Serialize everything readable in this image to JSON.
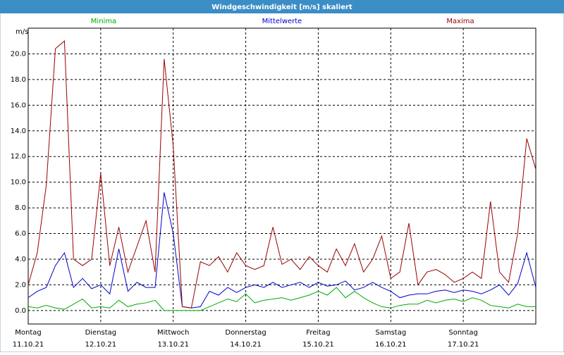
{
  "chart_data": {
    "type": "line",
    "title": "Windgeschwindigkeit [m/s] skaliert",
    "y_unit": "m/s",
    "x": [
      0,
      0.125,
      0.25,
      0.375,
      0.5,
      0.625,
      0.75,
      0.875,
      1,
      1.125,
      1.25,
      1.375,
      1.5,
      1.625,
      1.75,
      1.875,
      2,
      2.125,
      2.25,
      2.375,
      2.5,
      2.625,
      2.75,
      2.875,
      3,
      3.125,
      3.25,
      3.375,
      3.5,
      3.625,
      3.75,
      3.875,
      4,
      4.125,
      4.25,
      4.375,
      4.5,
      4.625,
      4.75,
      4.875,
      5,
      5.125,
      5.25,
      5.375,
      5.5,
      5.625,
      5.75,
      5.875,
      6,
      6.125,
      6.25,
      6.375,
      6.5,
      6.625,
      6.75,
      6.875,
      7
    ],
    "series": [
      {
        "name": "Minima",
        "color": "#00aa00",
        "values": [
          0.3,
          0.2,
          0.4,
          0.2,
          0.1,
          0.5,
          0.9,
          0.2,
          0.3,
          0.2,
          0.8,
          0.3,
          0.5,
          0.6,
          0.8,
          0,
          0,
          0,
          0,
          0,
          0.3,
          0.6,
          0.9,
          0.7,
          1.3,
          0.6,
          0.8,
          0.9,
          1.0,
          0.8,
          1.0,
          1.2,
          1.5,
          1.2,
          1.8,
          1.0,
          1.5,
          1.0,
          0.6,
          0.3,
          0.2,
          0.4,
          0.5,
          0.5,
          0.8,
          0.6,
          0.8,
          0.9,
          0.7,
          1.0,
          0.8,
          0.4,
          0.3,
          0.2,
          0.5,
          0.3,
          0.3
        ]
      },
      {
        "name": "Mittelwerte",
        "color": "#0000cc",
        "values": [
          1.0,
          1.5,
          1.8,
          3.5,
          4.5,
          1.8,
          2.5,
          1.7,
          2.0,
          1.3,
          4.8,
          1.5,
          2.2,
          1.8,
          1.8,
          9.2,
          6.0,
          0.3,
          0.2,
          0.3,
          1.5,
          1.2,
          1.8,
          1.4,
          1.8,
          2.0,
          1.8,
          2.2,
          1.8,
          2.0,
          2.2,
          1.8,
          2.2,
          1.9,
          2.0,
          2.3,
          1.6,
          1.8,
          2.2,
          1.8,
          1.5,
          1.0,
          1.2,
          1.3,
          1.3,
          1.5,
          1.6,
          1.4,
          1.6,
          1.5,
          1.3,
          1.6,
          2.0,
          1.2,
          2.1,
          4.5,
          1.8
        ]
      },
      {
        "name": "Maxima",
        "color": "#990000",
        "values": [
          2.0,
          4.5,
          9.8,
          20.4,
          21.0,
          4.0,
          3.5,
          4.0,
          10.7,
          3.5,
          6.5,
          3.0,
          5.0,
          7.0,
          3.0,
          19.6,
          12.8,
          0.3,
          0.2,
          3.8,
          3.5,
          4.2,
          3.0,
          4.5,
          3.5,
          3.2,
          3.5,
          6.5,
          3.6,
          4.0,
          3.2,
          4.2,
          3.5,
          3.0,
          4.8,
          3.5,
          5.2,
          3.0,
          4.0,
          5.8,
          2.5,
          3.0,
          6.8,
          2.0,
          3.0,
          3.2,
          2.8,
          2.2,
          2.5,
          3.0,
          2.5,
          8.5,
          3.0,
          2.2,
          6.0,
          13.4,
          11.0
        ]
      }
    ],
    "xlim": [
      0,
      7
    ],
    "xticks": [
      {
        "value": 0,
        "label": "Montag"
      },
      {
        "value": 1,
        "label": "Dienstag"
      },
      {
        "value": 2,
        "label": "Mittwoch"
      },
      {
        "value": 3,
        "label": "Donnerstag"
      },
      {
        "value": 4,
        "label": "Freitag"
      },
      {
        "value": 5,
        "label": "Samstag"
      },
      {
        "value": 6,
        "label": "Sonntag"
      }
    ],
    "xtick_dates": [
      "11.10.21",
      "12.10.21",
      "13.10.21",
      "14.10.21",
      "15.10.21",
      "16.10.21",
      "17.10.21"
    ],
    "ylim": [
      -1.05,
      22.0
    ],
    "yticks": [
      {
        "value": 0,
        "label": "0.0"
      },
      {
        "value": 2,
        "label": "2.0"
      },
      {
        "value": 4,
        "label": "4.0"
      },
      {
        "value": 6,
        "label": "6.0"
      },
      {
        "value": 8,
        "label": "8.0"
      },
      {
        "value": 10,
        "label": "10.0"
      },
      {
        "value": 12,
        "label": "12.0"
      },
      {
        "value": 14,
        "label": "14.0"
      },
      {
        "value": 16,
        "label": "16.0"
      },
      {
        "value": 18,
        "label": "18.0"
      },
      {
        "value": 20,
        "label": "20.0"
      }
    ],
    "grid": true
  }
}
